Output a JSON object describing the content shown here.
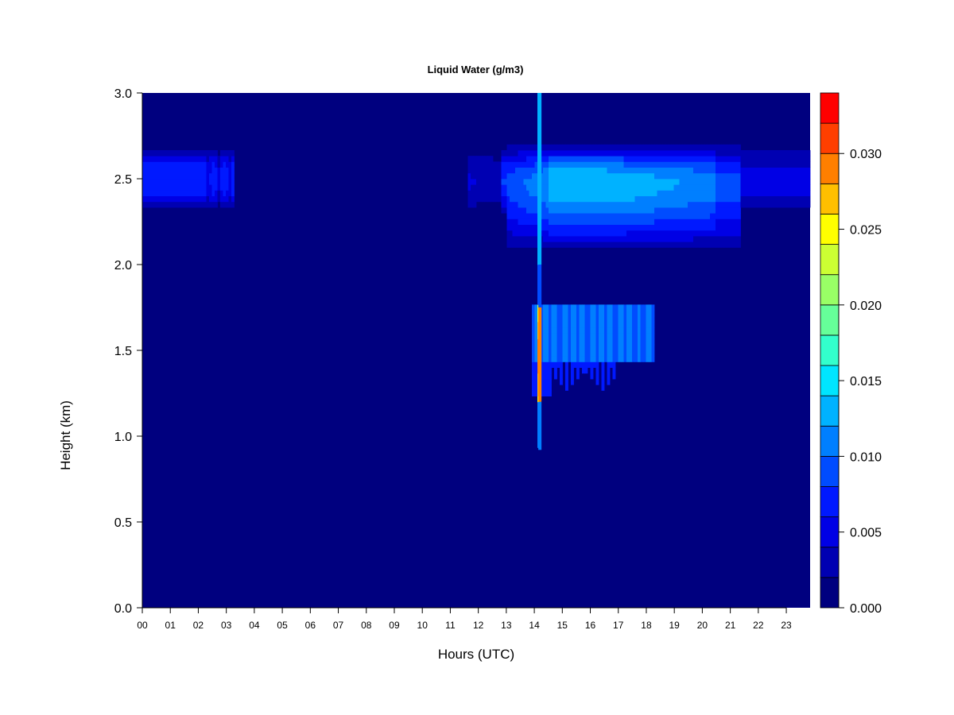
{
  "chart_data": {
    "type": "heatmap",
    "title": "Liquid Water (g/m3)",
    "xlabel": "Hours (UTC)",
    "ylabel": "Height (km)",
    "xlim": [
      0,
      23.85
    ],
    "ylim": [
      0,
      3.0
    ],
    "x_ticks": [
      0,
      1,
      2,
      3,
      4,
      5,
      6,
      7,
      8,
      9,
      10,
      11,
      12,
      13,
      14,
      15,
      16,
      17,
      18,
      19,
      20,
      21,
      22,
      23
    ],
    "x_tick_labels": [
      "00",
      "01",
      "02",
      "03",
      "04",
      "05",
      "06",
      "07",
      "08",
      "09",
      "10",
      "11",
      "12",
      "13",
      "14",
      "15",
      "16",
      "17",
      "18",
      "19",
      "20",
      "21",
      "22",
      "23"
    ],
    "y_ticks": [
      0,
      0.5,
      1.0,
      1.5,
      2.0,
      2.5,
      3.0
    ],
    "y_tick_labels": [
      "0.0",
      "0.5",
      "1.0",
      "1.5",
      "2.0",
      "2.5",
      "3.0"
    ],
    "colorbar": {
      "min": 0.0,
      "max": 0.034,
      "levels": 17,
      "tick_values": [
        0.0,
        0.005,
        0.01,
        0.015,
        0.02,
        0.025,
        0.03
      ],
      "tick_labels": [
        "0.000",
        "0.005",
        "0.010",
        "0.015",
        "0.020",
        "0.025",
        "0.030"
      ],
      "colors": [
        "#00007f",
        "#0000b2",
        "#0000e5",
        "#0019ff",
        "#004cff",
        "#007fff",
        "#00b2ff",
        "#00e5ff",
        "#33ffcc",
        "#66ff99",
        "#99ff66",
        "#ccff33",
        "#ffff00",
        "#ffbf00",
        "#ff7f00",
        "#ff3f00",
        "#ff0000",
        "#bf0000",
        "#7f0000"
      ]
    },
    "features": [
      {
        "name": "upper cloud layer early",
        "x_range": [
          0,
          3.3
        ],
        "y_range": [
          2.3,
          2.7
        ],
        "peak_value": 0.008,
        "peak_height": 2.5
      },
      {
        "name": "upper cloud layer afternoon",
        "x_range": [
          11.6,
          23.85
        ],
        "y_range": [
          2.05,
          2.72
        ],
        "peak_value": 0.014,
        "peak_height": 2.48
      },
      {
        "name": "lower cloud layer",
        "x_range": [
          13.9,
          18.3
        ],
        "y_range": [
          1.24,
          1.77
        ],
        "peak_value": 0.011,
        "peak_height": 1.6
      },
      {
        "name": "precipitation streak",
        "x": 14.2,
        "y_range": [
          0.92,
          3.0
        ],
        "peak_value": 0.03,
        "peak_height": 1.5
      }
    ]
  }
}
